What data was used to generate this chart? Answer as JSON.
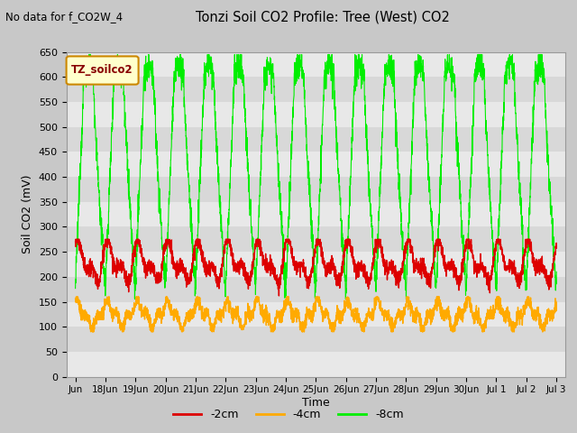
{
  "title": "Tonzi Soil CO2 Profile: Tree (West) CO2",
  "no_data_text": "No data for f_CO2W_4",
  "ylabel": "Soil CO2 (mV)",
  "xlabel": "Time",
  "ylim": [
    0,
    650
  ],
  "yticks": [
    0,
    50,
    100,
    150,
    200,
    250,
    300,
    350,
    400,
    450,
    500,
    550,
    600,
    650
  ],
  "band_colors": [
    "#e8e8e8",
    "#d8d8d8"
  ],
  "grid_color": "#ffffff",
  "fig_bg": "#c8c8c8",
  "series": [
    {
      "label": "-2cm",
      "color": "#dd0000"
    },
    {
      "label": "-4cm",
      "color": "#ffaa00"
    },
    {
      "label": "-8cm",
      "color": "#00ee00"
    }
  ],
  "legend_box_facecolor": "#ffffcc",
  "legend_box_edgecolor": "#cc8800",
  "legend_box_text": "TZ_soilco2",
  "legend_box_text_color": "#880000",
  "n_points": 3000
}
